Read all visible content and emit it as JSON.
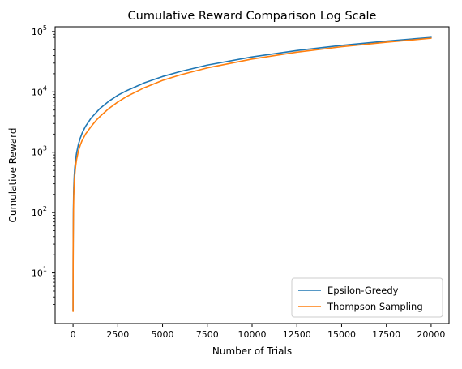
{
  "chart_data": {
    "type": "line",
    "title": "Cumulative Reward Comparison Log Scale",
    "xlabel": "Number of Trials",
    "ylabel": "Cumulative Reward",
    "xlim": [
      -1000,
      21000
    ],
    "ylim": [
      1.45,
      120000
    ],
    "yscale": "log",
    "grid": false,
    "legend_position": "lower-right",
    "x_ticks": [
      0,
      2500,
      5000,
      7500,
      10000,
      12500,
      15000,
      17500,
      20000
    ],
    "x_tick_labels": [
      "0",
      "2500",
      "5000",
      "7500",
      "10000",
      "12500",
      "15000",
      "17500",
      "20000"
    ],
    "y_ticks": [
      10,
      100,
      1000,
      10000,
      100000
    ],
    "y_tick_labels": [
      {
        "base": "10",
        "exp": "1"
      },
      {
        "base": "10",
        "exp": "2"
      },
      {
        "base": "10",
        "exp": "3"
      },
      {
        "base": "10",
        "exp": "4"
      },
      {
        "base": "10",
        "exp": "5"
      }
    ],
    "series": [
      {
        "name": "Epsilon-Greedy",
        "color": "#1f77b4",
        "x": [
          1,
          5,
          10,
          20,
          40,
          70,
          100,
          150,
          200,
          300,
          400,
          500,
          700,
          1000,
          1500,
          2000,
          2500,
          3000,
          4000,
          5000,
          6000,
          7500,
          10000,
          12500,
          15000,
          17500,
          20000
        ],
        "y": [
          2.4,
          15,
          40,
          110,
          260,
          420,
          560,
          780,
          980,
          1350,
          1700,
          2050,
          2700,
          3650,
          5300,
          7000,
          8800,
          10500,
          14200,
          18000,
          21800,
          27800,
          38000,
          48500,
          59000,
          69500,
          80000
        ]
      },
      {
        "name": "Thompson Sampling",
        "color": "#ff7f0e",
        "x": [
          1,
          5,
          10,
          20,
          40,
          70,
          100,
          150,
          200,
          300,
          400,
          500,
          700,
          1000,
          1300,
          1500,
          2000,
          2500,
          3000,
          4000,
          5000,
          6000,
          7500,
          10000,
          12500,
          15000,
          17500,
          20000
        ],
        "y": [
          2.3,
          12,
          30,
          80,
          190,
          320,
          430,
          600,
          760,
          1050,
          1300,
          1550,
          2000,
          2650,
          3400,
          3900,
          5300,
          6800,
          8400,
          11800,
          15500,
          19200,
          25000,
          35000,
          45500,
          56000,
          66500,
          77500
        ]
      }
    ]
  }
}
